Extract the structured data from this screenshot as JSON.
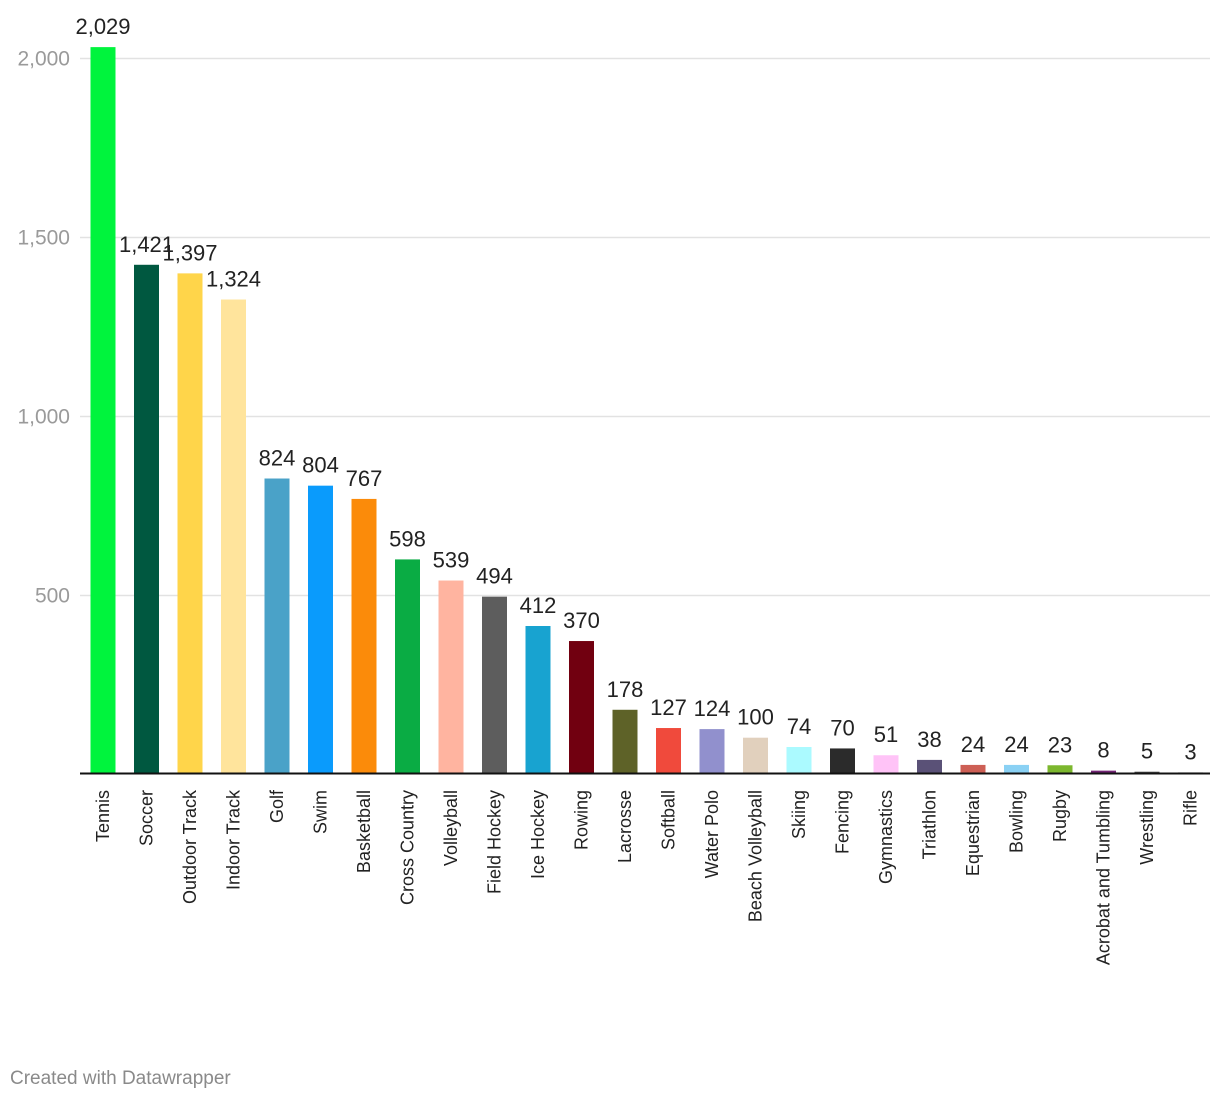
{
  "chart_data": {
    "type": "bar",
    "title": "",
    "xlabel": "",
    "ylabel": "",
    "ylim": [
      0,
      2000
    ],
    "y_ticks": [
      {
        "value": 500,
        "label": "500"
      },
      {
        "value": 1000,
        "label": "1,000"
      },
      {
        "value": 1500,
        "label": "1,500"
      },
      {
        "value": 2000,
        "label": "2,000"
      }
    ],
    "grid": true,
    "categories": [
      "Tennis",
      "Soccer",
      "Outdoor Track",
      "Indoor Track",
      "Golf",
      "Swim",
      "Basketball",
      "Cross Country",
      "Volleyball",
      "Field Hockey",
      "Ice Hockey",
      "Rowing",
      "Lacrosse",
      "Softball",
      "Water Polo",
      "Beach Volleyball",
      "Skiing",
      "Fencing",
      "Gymnastics",
      "Triathlon",
      "Equestrian",
      "Bowling",
      "Rugby",
      "Acrobat and Tumbling",
      "Wrestling",
      "Rifle"
    ],
    "values": [
      2029,
      1421,
      1397,
      1324,
      824,
      804,
      767,
      598,
      539,
      494,
      412,
      370,
      178,
      127,
      124,
      100,
      74,
      70,
      51,
      38,
      24,
      24,
      23,
      8,
      5,
      3
    ],
    "value_labels": [
      "2,029",
      "1,421",
      "1,397",
      "1,324",
      "824",
      "804",
      "767",
      "598",
      "539",
      "494",
      "412",
      "370",
      "178",
      "127",
      "124",
      "100",
      "74",
      "70",
      "51",
      "38",
      "24",
      "24",
      "23",
      "8",
      "5",
      "3"
    ],
    "colors": [
      "#00f43d",
      "#005840",
      "#ffd54a",
      "#ffe49c",
      "#4aa2c8",
      "#0a9bfc",
      "#fb8b0a",
      "#0aac44",
      "#ffb4a0",
      "#5d5d5d",
      "#18a3d0",
      "#710010",
      "#5e6228",
      "#f04a3c",
      "#9190cd",
      "#e1d0bd",
      "#abfaff",
      "#2b2b2b",
      "#ffc3f7",
      "#5a5177",
      "#cd5f55",
      "#8ad1f4",
      "#7cb72e",
      "#732475",
      "#4a4a4a",
      "#5c5c5c"
    ]
  },
  "footer": {
    "credit": "Created with Datawrapper"
  }
}
